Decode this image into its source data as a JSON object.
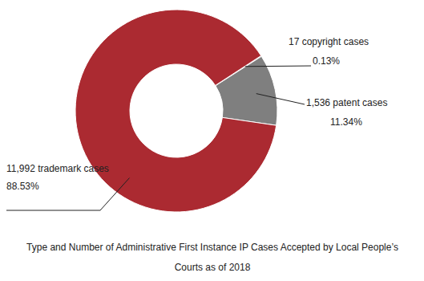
{
  "chart_data": {
    "type": "donut",
    "title": "Type and Number of Administrative First Instance IP Cases Accepted by Local People’s Courts as of 2018",
    "categories": [
      "17 copyright cases",
      "1,536 patent cases",
      "11,992 trademark cases"
    ],
    "values": [
      0.13,
      11.34,
      88.53
    ],
    "value_labels": [
      "0.13%",
      "11.34%",
      "88.53%"
    ],
    "colors": [
      "#bfbfbf",
      "#7f7f7f",
      "#ab2a31"
    ],
    "data_labels": true
  }
}
